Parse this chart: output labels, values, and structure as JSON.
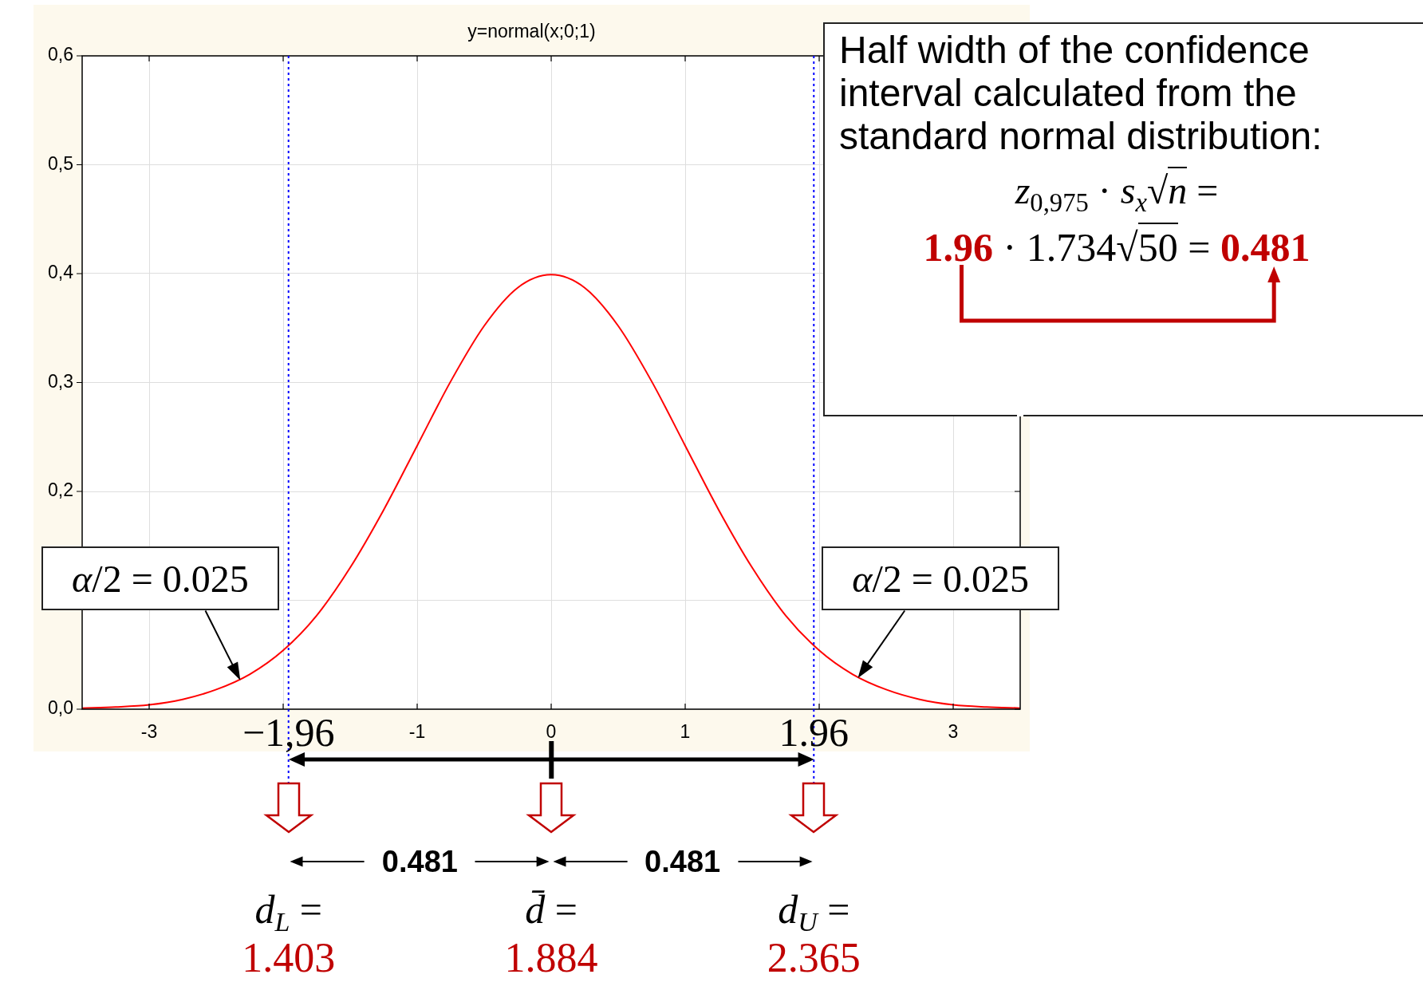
{
  "chart_data": {
    "type": "line",
    "title": "y=normal(x;0;1)",
    "x": [
      -3.5,
      -3.25,
      -3,
      -2.75,
      -2.5,
      -2.25,
      -2,
      -1.75,
      -1.5,
      -1.25,
      -1,
      -0.75,
      -0.5,
      -0.25,
      0,
      0.25,
      0.5,
      0.75,
      1,
      1.25,
      1.5,
      1.75,
      2,
      2.25,
      2.5,
      2.75,
      3,
      3.25,
      3.5
    ],
    "series": [
      {
        "color": "#ff0000",
        "values": [
          0.001,
          0.002,
          0.004,
          0.009,
          0.018,
          0.032,
          0.054,
          0.086,
          0.13,
          0.183,
          0.242,
          0.301,
          0.352,
          0.387,
          0.399,
          0.387,
          0.352,
          0.301,
          0.242,
          0.183,
          0.13,
          0.086,
          0.054,
          0.032,
          0.018,
          0.009,
          0.004,
          0.002,
          0.001
        ]
      }
    ],
    "xlim": [
      -3.5,
      3.5
    ],
    "xticks": [
      -3,
      {
        "value": -2,
        "label": null
      },
      -1,
      0,
      1,
      {
        "value": 2,
        "label": null
      },
      3
    ],
    "ylim": [
      0,
      0.6
    ],
    "yticks": [
      {
        "value": 0,
        "label": "0,0"
      },
      {
        "value": 0.1,
        "label": null
      },
      {
        "value": 0.2,
        "label": "0,2"
      },
      {
        "value": 0.3,
        "label": "0,3"
      },
      {
        "value": 0.4,
        "label": "0,4"
      },
      {
        "value": 0.5,
        "label": "0,5"
      },
      {
        "value": 0.6,
        "label": "0,6"
      }
    ],
    "grid": true,
    "ref_lines": [
      {
        "axis": "x",
        "value": -1.96,
        "label": "−1,96",
        "color": "#0000ff",
        "line_style": "dotted"
      },
      {
        "axis": "x",
        "value": 1.96,
        "label": "1.96",
        "color": "#0000ff",
        "line_style": "dotted"
      }
    ],
    "annotations": [
      {
        "text": "α/2 = 0.025",
        "x": -2.32,
        "y": 0.027
      },
      {
        "text": "α/2 = 0.025",
        "x": 2.29,
        "y": 0.029
      },
      "Half width of the confidence interval calculated from the standard normal distribution:",
      "z$_{0,975}$ · s$_{x}$√n =",
      "1.96",
      "· 1.734√50 =",
      "0.481",
      "0.481",
      "0.481",
      "d$_{L}$ =",
      "1.403",
      "d̄ =",
      "1.884",
      "d$_{U}$ =",
      "2.365"
    ]
  }
}
